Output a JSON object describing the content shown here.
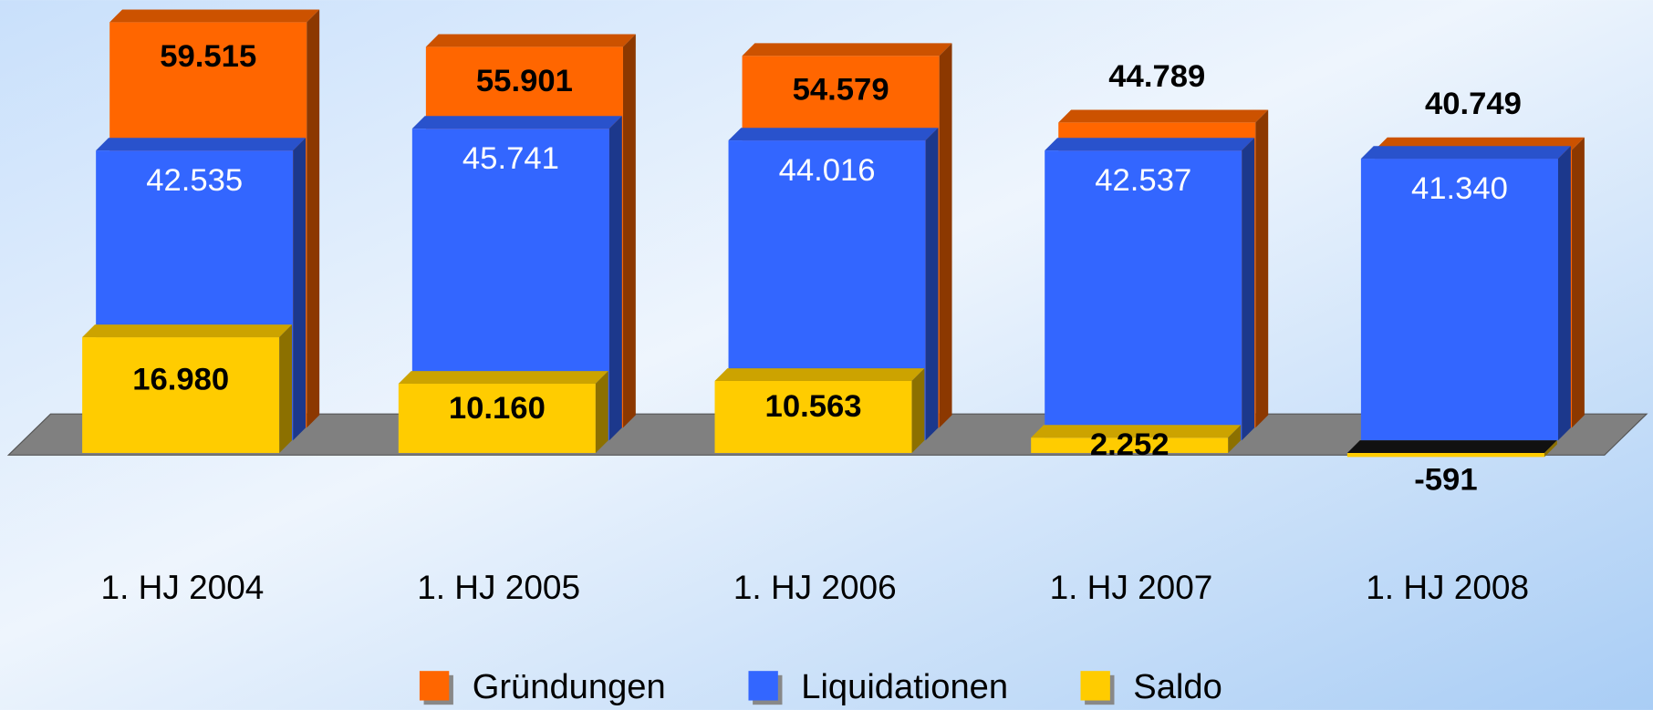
{
  "chart_data": {
    "type": "bar3d",
    "categories": [
      "1. HJ 2004",
      "1. HJ 2005",
      "1. HJ 2006",
      "1. HJ 2007",
      "1. HJ 2008"
    ],
    "series": [
      {
        "name": "Gründungen",
        "color": "#ff6600",
        "values": [
          59515,
          55901,
          54579,
          44789,
          40749
        ],
        "value_labels": [
          "59.515",
          "55.901",
          "54.579",
          "44.789",
          "40.749"
        ]
      },
      {
        "name": "Liquidationen",
        "color": "#3366ff",
        "values": [
          42535,
          45741,
          44016,
          42537,
          41340
        ],
        "value_labels": [
          "42.535",
          "45.741",
          "44.016",
          "42.537",
          "41.340"
        ]
      },
      {
        "name": "Saldo",
        "color": "#ffcc00",
        "values": [
          16980,
          10160,
          10563,
          2252,
          -591
        ],
        "value_labels": [
          "16.980",
          "10.160",
          "10.563",
          "2.252",
          "-591"
        ]
      }
    ],
    "legend": "bottom"
  }
}
